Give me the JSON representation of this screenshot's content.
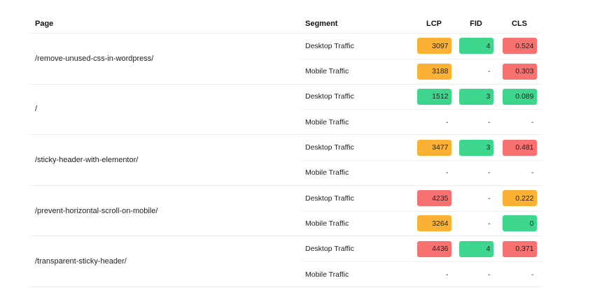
{
  "header": {
    "page": "Page",
    "segment": "Segment",
    "lcp": "LCP",
    "fid": "FID",
    "cls": "CLS"
  },
  "colors": {
    "good": "#3dd68c",
    "warn": "#fbb234",
    "bad": "#f87171"
  },
  "groups": [
    {
      "page": "/remove-unused-css-in-wordpress/",
      "rows": [
        {
          "segment": "Desktop Traffic",
          "lcp": {
            "value": "3097",
            "status": "warn"
          },
          "fid": {
            "value": "4",
            "status": "good"
          },
          "cls": {
            "value": "0.524",
            "status": "bad"
          }
        },
        {
          "segment": "Mobile Traffic",
          "lcp": {
            "value": "3188",
            "status": "warn"
          },
          "fid": {
            "value": "-",
            "status": "none"
          },
          "cls": {
            "value": "0.303",
            "status": "bad"
          }
        }
      ]
    },
    {
      "page": "/",
      "rows": [
        {
          "segment": "Desktop Traffic",
          "lcp": {
            "value": "1512",
            "status": "good"
          },
          "fid": {
            "value": "3",
            "status": "good"
          },
          "cls": {
            "value": "0.089",
            "status": "good"
          }
        },
        {
          "segment": "Mobile Traffic",
          "lcp": {
            "value": "-",
            "status": "none"
          },
          "fid": {
            "value": "-",
            "status": "none"
          },
          "cls": {
            "value": "-",
            "status": "none"
          }
        }
      ]
    },
    {
      "page": "/sticky-header-with-elementor/",
      "rows": [
        {
          "segment": "Desktop Traffic",
          "lcp": {
            "value": "3477",
            "status": "warn"
          },
          "fid": {
            "value": "3",
            "status": "good"
          },
          "cls": {
            "value": "0.481",
            "status": "bad"
          }
        },
        {
          "segment": "Mobile Traffic",
          "lcp": {
            "value": "-",
            "status": "none"
          },
          "fid": {
            "value": "-",
            "status": "none"
          },
          "cls": {
            "value": "-",
            "status": "none"
          }
        }
      ]
    },
    {
      "page": "/prevent-horizontal-scroll-on-mobile/",
      "rows": [
        {
          "segment": "Desktop Traffic",
          "lcp": {
            "value": "4235",
            "status": "bad"
          },
          "fid": {
            "value": "-",
            "status": "none"
          },
          "cls": {
            "value": "0.222",
            "status": "warn"
          }
        },
        {
          "segment": "Mobile Traffic",
          "lcp": {
            "value": "3264",
            "status": "warn"
          },
          "fid": {
            "value": "-",
            "status": "none"
          },
          "cls": {
            "value": "0",
            "status": "good"
          }
        }
      ]
    },
    {
      "page": "/transparent-sticky-header/",
      "rows": [
        {
          "segment": "Desktop Traffic",
          "lcp": {
            "value": "4436",
            "status": "bad"
          },
          "fid": {
            "value": "4",
            "status": "good"
          },
          "cls": {
            "value": "0.371",
            "status": "bad"
          }
        },
        {
          "segment": "Mobile Traffic",
          "lcp": {
            "value": "-",
            "status": "none"
          },
          "fid": {
            "value": "-",
            "status": "none"
          },
          "cls": {
            "value": "-",
            "status": "none"
          }
        }
      ]
    }
  ]
}
